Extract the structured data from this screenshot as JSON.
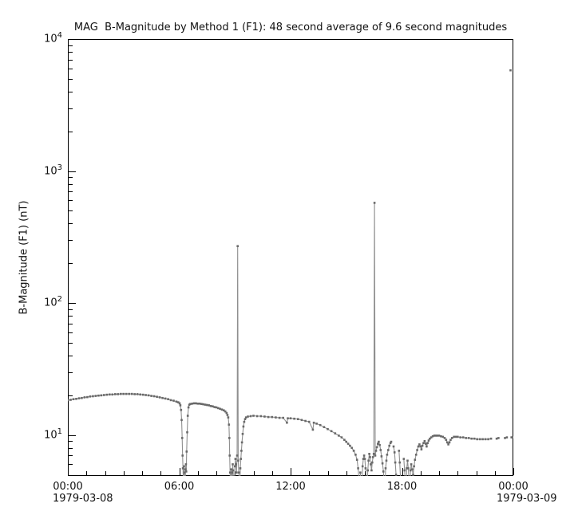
{
  "figure": {
    "title": "MAG  B-Magnitude by Method 1 (F1): 48 second average of 9.6 second magnitudes"
  },
  "y_axis": {
    "label": "B-Magnitude (F1) (nT)",
    "scale": "log",
    "tick_label_base": "10",
    "major_tick_exponents": [
      4,
      3,
      2,
      1
    ],
    "range_min": 4.9,
    "range_max": 10000
  },
  "x_axis": {
    "tick_labels": [
      "00:00",
      "06:00",
      "12:00",
      "18:00",
      "00:00"
    ],
    "tick_positions_hours": [
      0,
      6,
      12,
      18,
      24
    ],
    "minor_tick_interval_hours": 1,
    "range_hours": [
      0,
      24
    ],
    "start_date_label": "1979-03-08",
    "end_date_label": "1979-03-09"
  },
  "colors": {
    "marker": "#696969",
    "line": "#8f8f8f",
    "axis": "#000000",
    "text": "#111111",
    "background": "#ffffff"
  },
  "chart_data": {
    "type": "line",
    "title": "MAG  B-Magnitude by Method 1 (F1): 48 second average of 9.6 second magnitudes",
    "xlabel": "",
    "ylabel": "B-Magnitude (F1) (nT)",
    "yscale": "log",
    "ylim": [
      4.9,
      10000
    ],
    "xlim_hours": [
      0,
      24
    ],
    "x_unit": "hours after 1979-03-08 00:00",
    "legend": "none",
    "grid": false,
    "series": [
      {
        "name": "B-magnitude (F1) 48 s average",
        "marker": "square",
        "points": [
          [
            0,
            18.4
          ],
          [
            0.15,
            18.5
          ],
          [
            0.3,
            18.7
          ],
          [
            0.45,
            18.8
          ],
          [
            0.6,
            19
          ],
          [
            0.75,
            19.1
          ],
          [
            0.9,
            19.3
          ],
          [
            1.05,
            19.4
          ],
          [
            1.2,
            19.6
          ],
          [
            1.35,
            19.7
          ],
          [
            1.5,
            19.8
          ],
          [
            1.65,
            19.9
          ],
          [
            1.8,
            20
          ],
          [
            1.95,
            20.1
          ],
          [
            2.1,
            20.2
          ],
          [
            2.25,
            20.3
          ],
          [
            2.4,
            20.3
          ],
          [
            2.55,
            20.4
          ],
          [
            2.7,
            20.4
          ],
          [
            2.85,
            20.5
          ],
          [
            3,
            20.5
          ],
          [
            3.15,
            20.5
          ],
          [
            3.3,
            20.5
          ],
          [
            3.45,
            20.5
          ],
          [
            3.6,
            20.4
          ],
          [
            3.75,
            20.4
          ],
          [
            3.9,
            20.3
          ],
          [
            4.05,
            20.2
          ],
          [
            4.2,
            20.1
          ],
          [
            4.35,
            20
          ],
          [
            4.5,
            19.8
          ],
          [
            4.65,
            19.7
          ],
          [
            4.8,
            19.5
          ],
          [
            4.95,
            19.3
          ],
          [
            5.1,
            19.1
          ],
          [
            5.25,
            18.9
          ],
          [
            5.4,
            18.7
          ],
          [
            5.55,
            18.4
          ],
          [
            5.7,
            18.2
          ],
          [
            5.85,
            17.9
          ],
          [
            5.95,
            17.7
          ],
          [
            6.02,
            17.4
          ],
          [
            6.06,
            16.8
          ],
          [
            6.1,
            15.5
          ],
          [
            6.13,
            13
          ],
          [
            6.16,
            9.5
          ],
          [
            6.18,
            7
          ],
          [
            6.2,
            5.6
          ],
          [
            6.22,
            4.6
          ],
          [
            6.24,
            3.8
          ],
          [
            6.26,
            5.8
          ],
          [
            6.28,
            5.2
          ],
          [
            6.3,
            4.4
          ],
          [
            6.32,
            3.6
          ],
          [
            6.34,
            5.5
          ],
          [
            6.36,
            6
          ],
          [
            6.38,
            5.3
          ],
          [
            6.4,
            7.5
          ],
          [
            6.43,
            10.5
          ],
          [
            6.46,
            14
          ],
          [
            6.5,
            16.2
          ],
          [
            6.54,
            17
          ],
          [
            6.6,
            17.2
          ],
          [
            6.7,
            17.3
          ],
          [
            6.8,
            17.4
          ],
          [
            6.9,
            17.4
          ],
          [
            7,
            17.3
          ],
          [
            7.1,
            17.3
          ],
          [
            7.2,
            17.2
          ],
          [
            7.3,
            17.1
          ],
          [
            7.4,
            17
          ],
          [
            7.5,
            16.9
          ],
          [
            7.6,
            16.8
          ],
          [
            7.7,
            16.6
          ],
          [
            7.8,
            16.5
          ],
          [
            7.9,
            16.3
          ],
          [
            8,
            16.2
          ],
          [
            8.1,
            16
          ],
          [
            8.2,
            15.8
          ],
          [
            8.3,
            15.6
          ],
          [
            8.4,
            15.4
          ],
          [
            8.48,
            15.1
          ],
          [
            8.55,
            14.7
          ],
          [
            8.6,
            14.2
          ],
          [
            8.64,
            13.6
          ],
          [
            8.68,
            12
          ],
          [
            8.7,
            9.5
          ],
          [
            8.72,
            7
          ],
          [
            8.74,
            5.2
          ],
          [
            8.76,
            4.2
          ],
          [
            8.78,
            3.5
          ],
          [
            8.8,
            5.5
          ],
          [
            8.82,
            4.6
          ],
          [
            8.84,
            3.6
          ],
          [
            8.86,
            5.2
          ],
          [
            8.88,
            6
          ],
          [
            8.9,
            5.4
          ],
          [
            8.93,
            4.4
          ],
          [
            8.96,
            3.5
          ],
          [
            9,
            5.8
          ],
          [
            9.03,
            6.6
          ],
          [
            9.06,
            6
          ],
          [
            9.09,
            5.2
          ],
          [
            9.12,
            7
          ],
          [
            9.15,
            270
          ],
          [
            9.18,
            6.4
          ],
          [
            9.21,
            5.2
          ],
          [
            9.24,
            4.2
          ],
          [
            9.26,
            3.5
          ],
          [
            9.29,
            5.6
          ],
          [
            9.32,
            6.6
          ],
          [
            9.35,
            7.6
          ],
          [
            9.38,
            8.8
          ],
          [
            9.42,
            10.2
          ],
          [
            9.46,
            11.6
          ],
          [
            9.5,
            12.6
          ],
          [
            9.55,
            13.2
          ],
          [
            9.6,
            13.6
          ],
          [
            9.7,
            13.8
          ],
          [
            9.85,
            13.9
          ],
          [
            10,
            14
          ],
          [
            10.2,
            13.9
          ],
          [
            10.4,
            13.9
          ],
          [
            10.6,
            13.8
          ],
          [
            10.8,
            13.7
          ],
          [
            11,
            13.7
          ],
          [
            11.2,
            13.6
          ],
          [
            11.4,
            13.5
          ],
          [
            11.6,
            13.5
          ],
          [
            11.8,
            12.4
          ],
          [
            11.85,
            13.4
          ],
          [
            12,
            13.4
          ],
          [
            12.2,
            13.3
          ],
          [
            12.4,
            13.2
          ],
          [
            12.6,
            13
          ],
          [
            12.8,
            12.8
          ],
          [
            13,
            12.6
          ],
          [
            13.2,
            11
          ],
          [
            13.25,
            12.4
          ],
          [
            13.4,
            12.2
          ],
          [
            13.6,
            11.9
          ],
          [
            13.8,
            11.5
          ],
          [
            14,
            11.1
          ],
          [
            14.2,
            10.7
          ],
          [
            14.4,
            10.3
          ],
          [
            14.6,
            9.9
          ],
          [
            14.75,
            9.6
          ],
          [
            14.9,
            9.2
          ],
          [
            15,
            8.9
          ],
          [
            15.1,
            8.6
          ],
          [
            15.2,
            8.3
          ],
          [
            15.3,
            8
          ],
          [
            15.4,
            7.6
          ],
          [
            15.5,
            7.1
          ],
          [
            15.58,
            6.5
          ],
          [
            15.64,
            5.6
          ],
          [
            15.68,
            4.6
          ],
          [
            15.72,
            3.6
          ],
          [
            15.76,
            5.2
          ],
          [
            15.8,
            4.4
          ],
          [
            15.84,
            3.5
          ],
          [
            15.88,
            5.8
          ],
          [
            15.92,
            6.6
          ],
          [
            15.96,
            7
          ],
          [
            16,
            6.6
          ],
          [
            16.04,
            5.6
          ],
          [
            16.08,
            4.6
          ],
          [
            16.12,
            3.7
          ],
          [
            16.16,
            5.4
          ],
          [
            16.2,
            6.4
          ],
          [
            16.24,
            7.2
          ],
          [
            16.28,
            6.8
          ],
          [
            16.32,
            6
          ],
          [
            16.36,
            5.4
          ],
          [
            16.4,
            6.2
          ],
          [
            16.44,
            6.8
          ],
          [
            16.48,
            7.2
          ],
          [
            16.52,
            575
          ],
          [
            16.56,
            7
          ],
          [
            16.6,
            7.6
          ],
          [
            16.65,
            8.1
          ],
          [
            16.7,
            8.6
          ],
          [
            16.75,
            8.9
          ],
          [
            16.8,
            8.4
          ],
          [
            16.85,
            7.7
          ],
          [
            16.9,
            6.9
          ],
          [
            16.95,
            6.1
          ],
          [
            17,
            5.3
          ],
          [
            17.04,
            4.5
          ],
          [
            17.08,
            3.6
          ],
          [
            17.12,
            5.6
          ],
          [
            17.16,
            6.4
          ],
          [
            17.2,
            7.1
          ],
          [
            17.26,
            7.7
          ],
          [
            17.32,
            8.3
          ],
          [
            17.38,
            8.7
          ],
          [
            17.42,
            8.9
          ],
          null,
          [
            17.55,
            8.2
          ],
          [
            17.6,
            7.4
          ],
          [
            17.64,
            6.2
          ],
          [
            17.68,
            5
          ],
          [
            17.72,
            3.8
          ],
          null,
          [
            17.84,
            7.6
          ],
          [
            17.88,
            6.2
          ],
          [
            17.92,
            4.8
          ],
          [
            17.96,
            3.6
          ],
          null,
          [
            18.1,
            6.6
          ],
          [
            18.14,
            5.4
          ],
          [
            18.18,
            4.4
          ],
          [
            18.22,
            3.6
          ],
          [
            18.26,
            5.6
          ],
          [
            18.3,
            6.4
          ],
          [
            18.34,
            5.6
          ],
          [
            18.38,
            4.6
          ],
          [
            18.42,
            3.6
          ],
          [
            18.46,
            5.4
          ],
          [
            18.5,
            6
          ],
          [
            18.55,
            5.5
          ],
          [
            18.6,
            5
          ],
          [
            18.65,
            5.8
          ],
          [
            18.7,
            6.5
          ],
          [
            18.76,
            7.1
          ],
          [
            18.82,
            7.7
          ],
          [
            18.88,
            8.2
          ],
          [
            18.94,
            8.5
          ],
          [
            19,
            8.2
          ],
          [
            19.05,
            7.8
          ],
          [
            19.1,
            8.3
          ],
          [
            19.16,
            8.7
          ],
          [
            19.22,
            9
          ],
          [
            19.28,
            8.6
          ],
          [
            19.33,
            8.2
          ],
          [
            19.38,
            8.7
          ],
          [
            19.44,
            9.1
          ],
          [
            19.5,
            9.4
          ],
          [
            19.58,
            9.6
          ],
          [
            19.66,
            9.8
          ],
          [
            19.74,
            9.9
          ],
          [
            19.82,
            9.9
          ],
          [
            19.9,
            9.9
          ],
          [
            20,
            9.9
          ],
          [
            20.1,
            9.8
          ],
          [
            20.2,
            9.7
          ],
          [
            20.3,
            9.5
          ],
          [
            20.38,
            9.2
          ],
          [
            20.44,
            8.8
          ],
          [
            20.5,
            8.5
          ],
          [
            20.56,
            8.8
          ],
          [
            20.62,
            9.2
          ],
          [
            20.7,
            9.5
          ],
          [
            20.8,
            9.7
          ],
          [
            20.9,
            9.7
          ],
          [
            21,
            9.7
          ],
          [
            21.15,
            9.6
          ],
          [
            21.3,
            9.6
          ],
          [
            21.45,
            9.5
          ],
          [
            21.6,
            9.5
          ],
          [
            21.75,
            9.4
          ],
          [
            21.9,
            9.4
          ],
          [
            22.05,
            9.3
          ],
          [
            22.2,
            9.3
          ],
          [
            22.35,
            9.3
          ],
          [
            22.5,
            9.3
          ],
          [
            22.65,
            9.3
          ],
          [
            22.8,
            9.4
          ],
          null,
          [
            23.1,
            9.4
          ],
          [
            23.2,
            9.5
          ],
          null,
          [
            23.55,
            9.5
          ],
          [
            23.65,
            9.6
          ],
          null,
          [
            23.85,
            5800
          ],
          null,
          [
            23.9,
            9.6
          ],
          [
            23.97,
            9.6
          ]
        ]
      }
    ]
  }
}
